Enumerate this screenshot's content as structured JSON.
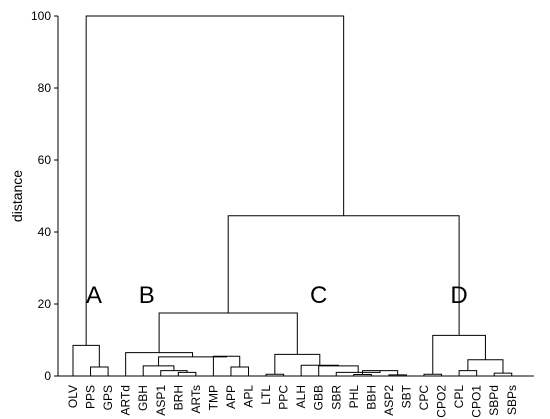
{
  "chart_data": {
    "type": "dendrogram",
    "title": "",
    "xlabel": "",
    "ylabel": "distance",
    "ylim": [
      0,
      100
    ],
    "yticks": [
      0,
      20,
      40,
      60,
      80,
      100
    ],
    "grid": false,
    "leaves": [
      "OLV",
      "PPS",
      "GPS",
      "ARTd",
      "GBH",
      "ASP1",
      "BRH",
      "ARTs",
      "TMP",
      "APP",
      "APL",
      "LTL",
      "PPC",
      "ALH",
      "GBB",
      "SBR",
      "PHL",
      "BBH",
      "ASP2",
      "SBT",
      "CPC",
      "CPO2",
      "CPL",
      "CPO1",
      "SBPd",
      "SBPs"
    ],
    "merges": [
      {
        "left": "leaf:PPS",
        "right": "leaf:GPS",
        "height": 2.5
      },
      {
        "left": "leaf:OLV",
        "right": "merge:0",
        "height": 8.5
      },
      {
        "left": "leaf:BRH",
        "right": "leaf:ARTs",
        "height": 1.0
      },
      {
        "left": "leaf:ASP1",
        "right": "merge:2",
        "height": 1.5
      },
      {
        "left": "leaf:GBH",
        "right": "merge:3",
        "height": 2.8
      },
      {
        "left": "leaf:APP",
        "right": "leaf:APL",
        "height": 2.5
      },
      {
        "left": "leaf:TMP",
        "right": "merge:5",
        "height": 5.5
      },
      {
        "left": "merge:4",
        "right": "merge:6",
        "height": 5.3
      },
      {
        "left": "leaf:ARTd",
        "right": "merge:7",
        "height": 6.5
      },
      {
        "left": "leaf:LTL",
        "right": "leaf:PPC",
        "height": 0.5
      },
      {
        "left": "leaf:PHL",
        "right": "leaf:BBH",
        "height": 0.4
      },
      {
        "left": "leaf:ASP2",
        "right": "leaf:SBT",
        "height": 0.3
      },
      {
        "left": "merge:10",
        "right": "merge:11",
        "height": 1.5
      },
      {
        "left": "leaf:SBR",
        "right": "merge:12",
        "height": 1.0
      },
      {
        "left": "leaf:GBB",
        "right": "merge:13",
        "height": 2.8
      },
      {
        "left": "leaf:ALH",
        "right": "merge:14",
        "height": 3.0
      },
      {
        "left": "merge:9",
        "right": "merge:15",
        "height": 6.0
      },
      {
        "left": "merge:8",
        "right": "merge:16",
        "height": 17.5
      },
      {
        "left": "leaf:CPC",
        "right": "leaf:CPO2",
        "height": 0.5
      },
      {
        "left": "leaf:CPL",
        "right": "leaf:CPO1",
        "height": 1.5
      },
      {
        "left": "leaf:SBPd",
        "right": "leaf:SBPs",
        "height": 0.8
      },
      {
        "left": "merge:19",
        "right": "merge:20",
        "height": 4.5
      },
      {
        "left": "merge:18",
        "right": "merge:21",
        "height": 11.3
      },
      {
        "left": "merge:17",
        "right": "merge:22",
        "height": 44.5
      },
      {
        "left": "merge:1",
        "right": "merge:23",
        "height": 100.0
      }
    ],
    "annotations": [
      {
        "text": "A",
        "x_leaf": 1.2,
        "y": 22
      },
      {
        "text": "B",
        "x_leaf": 4.2,
        "y": 22
      },
      {
        "text": "C",
        "x_leaf": 14.0,
        "y": 22
      },
      {
        "text": "D",
        "x_leaf": 22.0,
        "y": 22
      }
    ]
  }
}
